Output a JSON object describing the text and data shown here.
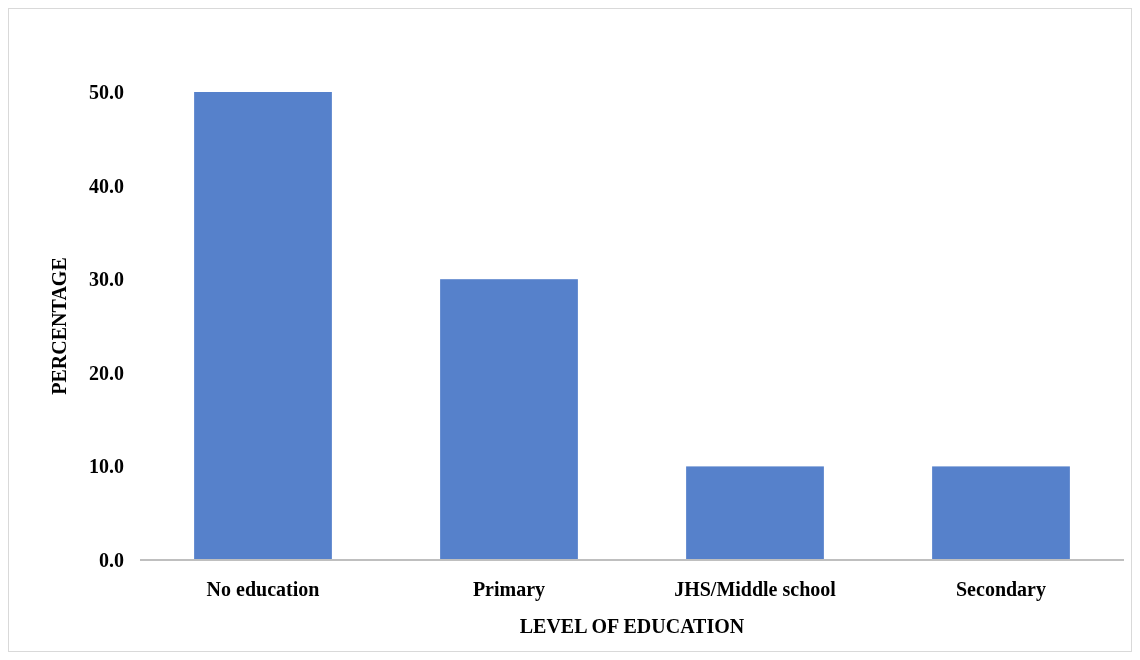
{
  "chart_data": {
    "type": "bar",
    "xlabel": "LEVEL OF EDUCATION",
    "ylabel": "PERCENTAGE",
    "categories": [
      "No education",
      "Primary",
      "JHS/Middle school",
      "Secondary"
    ],
    "values": [
      50,
      30,
      10,
      10
    ],
    "color": "#5681cb",
    "ylim": [
      0,
      50
    ],
    "yticks": [
      {
        "value": 0,
        "label": "0.0"
      },
      {
        "value": 10,
        "label": "10.0"
      },
      {
        "value": 20,
        "label": "20.0"
      },
      {
        "value": 30,
        "label": "30.0"
      },
      {
        "value": 40,
        "label": "40.0"
      },
      {
        "value": 50,
        "label": "50.0"
      }
    ],
    "grid": false
  }
}
